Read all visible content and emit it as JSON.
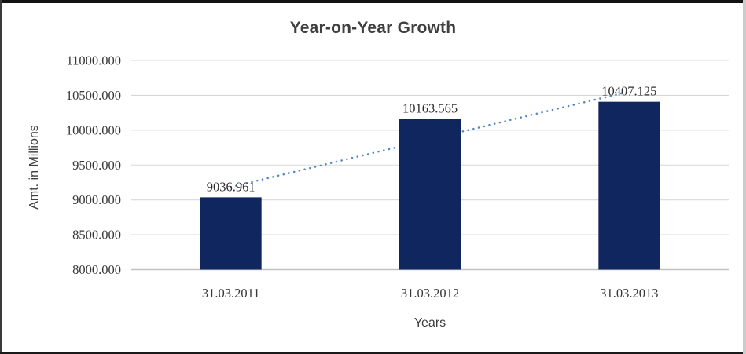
{
  "chart_data": {
    "type": "bar",
    "title": "Year-on-Year Growth",
    "xlabel": "Years",
    "ylabel": "Amt. in Millions",
    "categories": [
      "31.03.2011",
      "31.03.2012",
      "31.03.2013"
    ],
    "values": [
      9036.961,
      10163.565,
      10407.125
    ],
    "data_labels": [
      "9036.961",
      "10163.565",
      "10407.125"
    ],
    "y_tick_labels": [
      "8000.000",
      "8500.000",
      "9000.000",
      "9500.000",
      "10000.000",
      "10500.000",
      "11000.000"
    ],
    "ylim": [
      8000,
      11000
    ],
    "grid": true,
    "legend": "none",
    "trendline": {
      "type": "linear",
      "style": "dotted"
    },
    "colors": {
      "bar": "#10265f",
      "trendline": "#4f86c6",
      "gridline": "#d8d8d8",
      "axis_line": "#c2c2c2",
      "title_text": "#3f3f3f",
      "label_text": "#383838"
    }
  }
}
